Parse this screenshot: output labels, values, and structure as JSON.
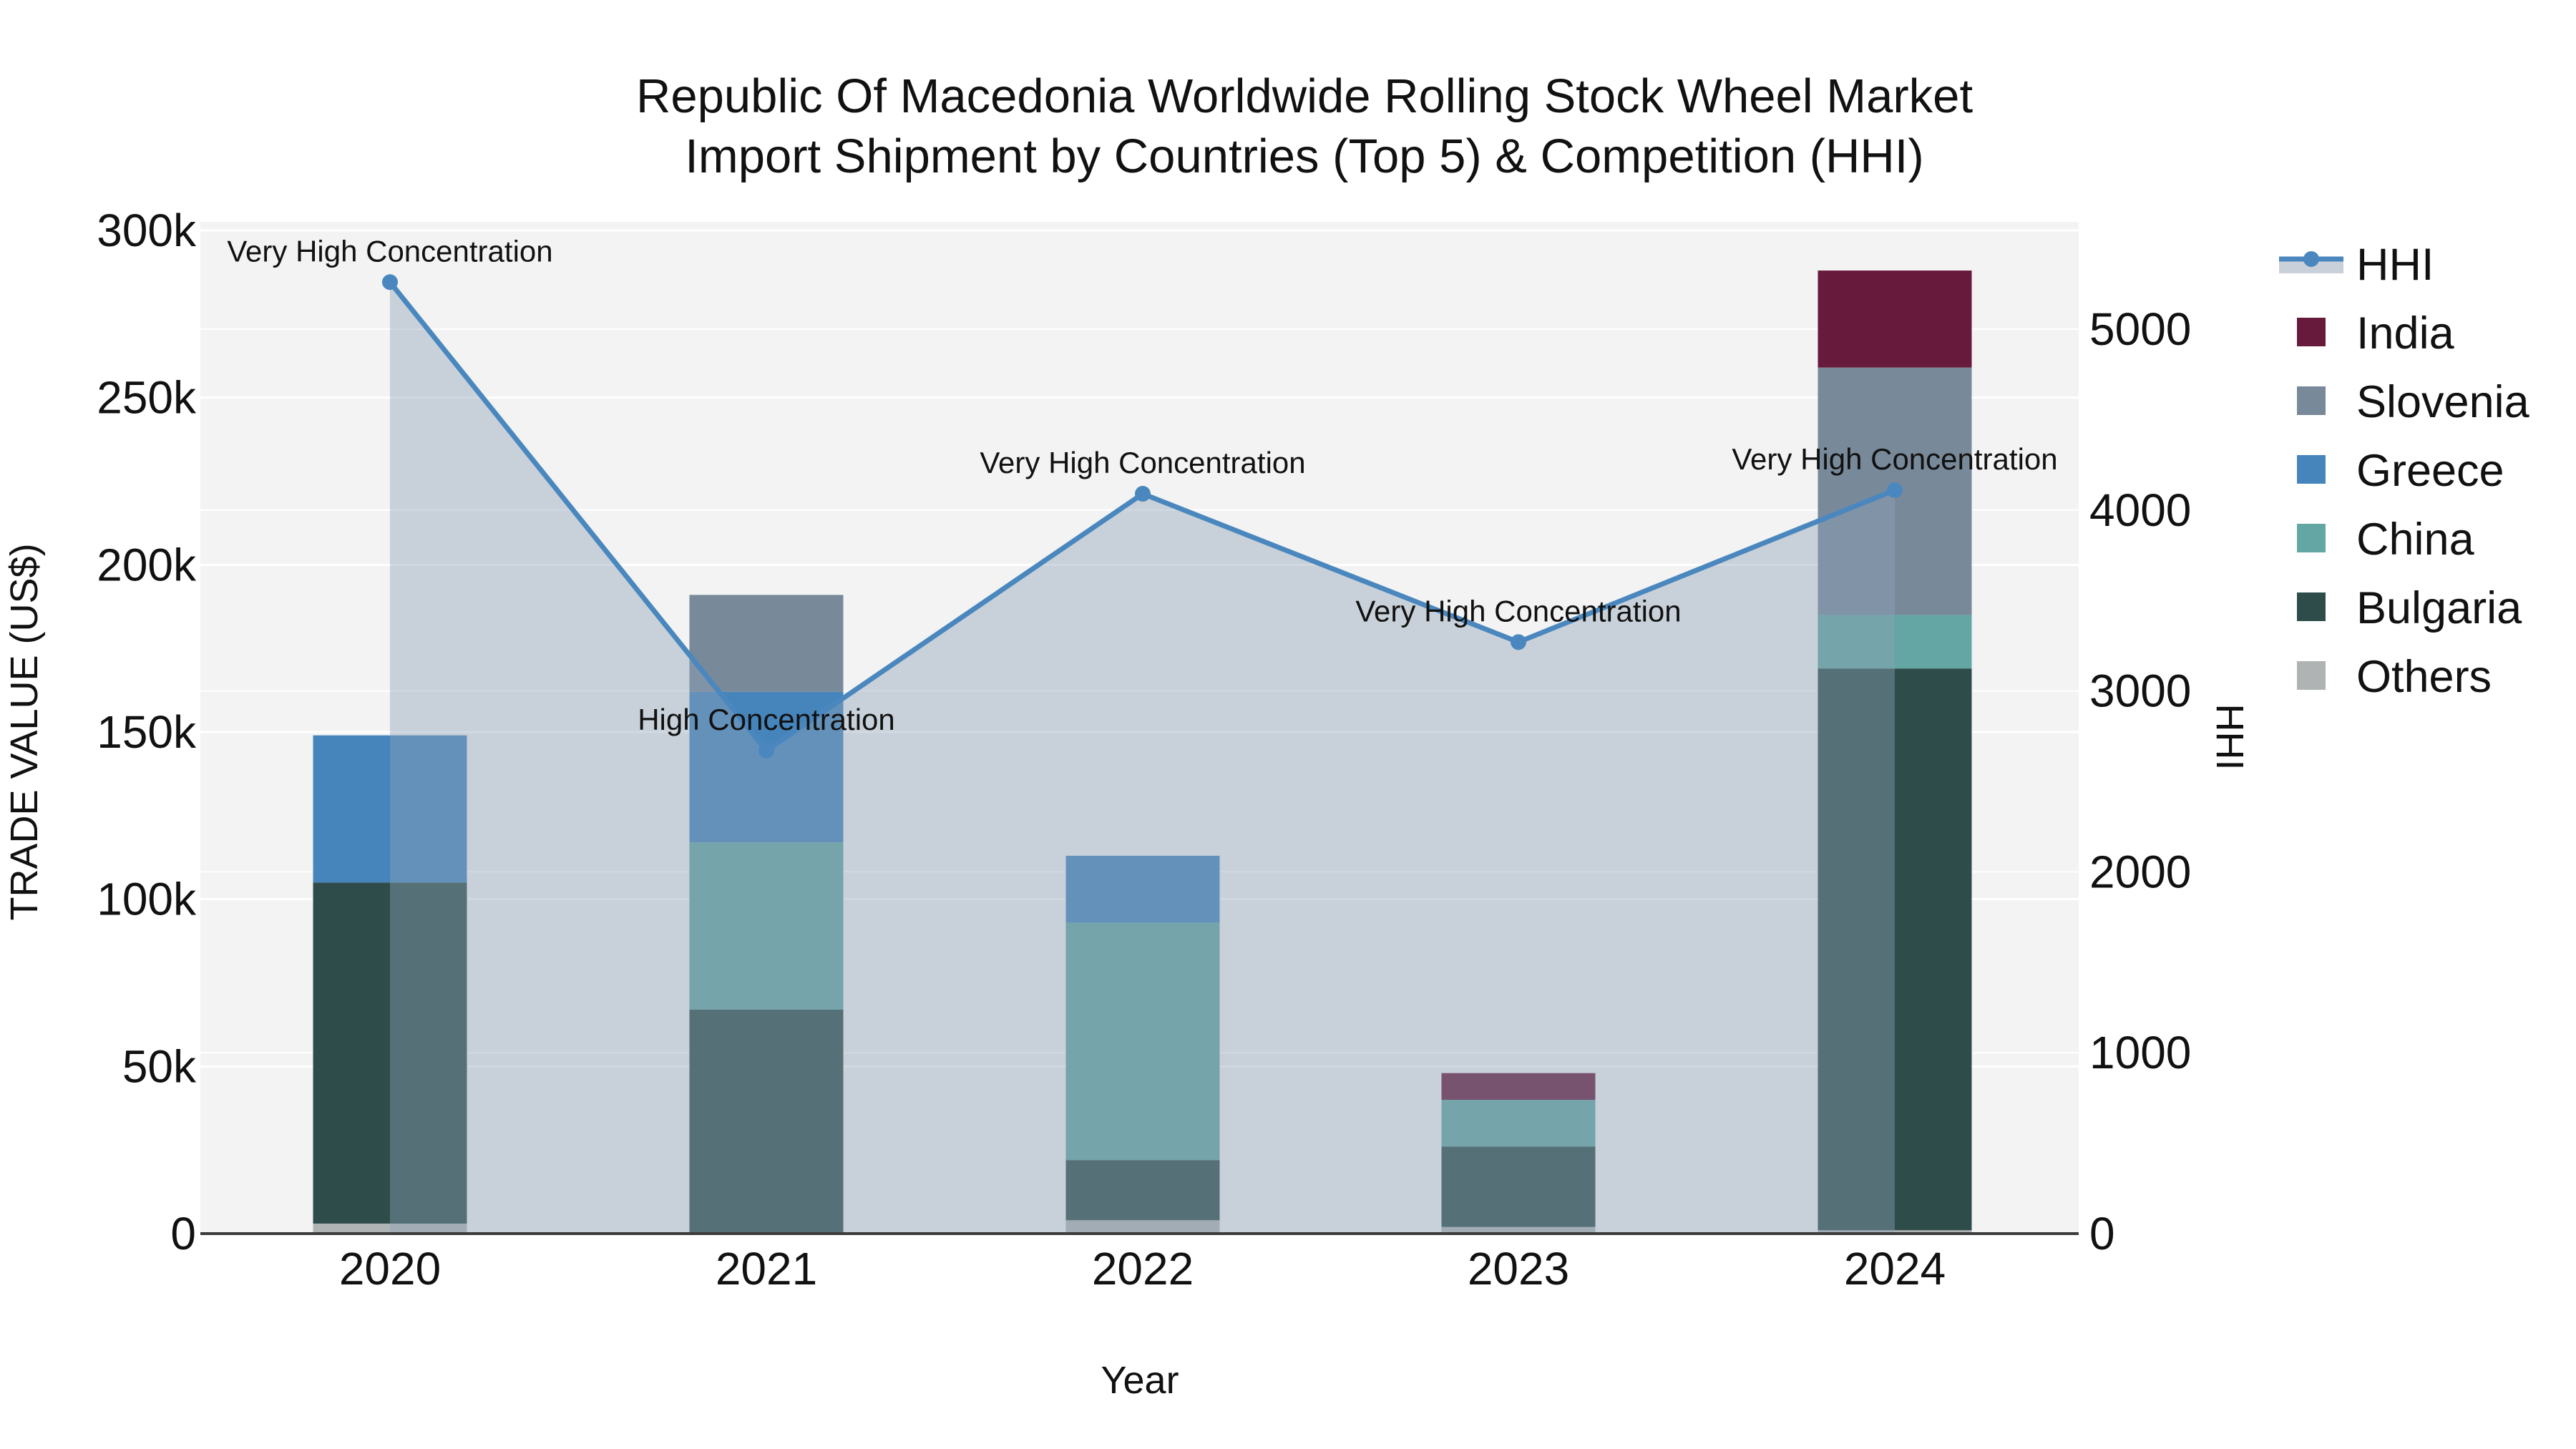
{
  "title": {
    "line1": "Republic Of Macedonia Worldwide Rolling Stock Wheel Market",
    "line2": "Import Shipment by Countries (Top 5) & Competition (HHI)"
  },
  "chart_data": {
    "type": "bar",
    "subtype": "stacked-bars-with-line",
    "categories": [
      "2020",
      "2021",
      "2022",
      "2023",
      "2024"
    ],
    "x": {
      "label": "Year"
    },
    "y1": {
      "label": "TRADE VALUE (US$)",
      "max": 300000,
      "ticks": [
        {
          "value": 0,
          "label": "0"
        },
        {
          "value": 50000,
          "label": "50k"
        },
        {
          "value": 100000,
          "label": "100k"
        },
        {
          "value": 150000,
          "label": "150k"
        },
        {
          "value": 200000,
          "label": "200k"
        },
        {
          "value": 250000,
          "label": "250k"
        },
        {
          "value": 300000,
          "label": "300k"
        }
      ]
    },
    "y2": {
      "label": "HHI",
      "max": 5000,
      "ticks": [
        {
          "value": 0,
          "label": "0"
        },
        {
          "value": 1000,
          "label": "1000"
        },
        {
          "value": 2000,
          "label": "2000"
        },
        {
          "value": 3000,
          "label": "3000"
        },
        {
          "value": 4000,
          "label": "4000"
        },
        {
          "value": 5000,
          "label": "5000"
        }
      ]
    },
    "bar_series": [
      {
        "name": "Others",
        "color": "#AFB3B3",
        "values": [
          3000,
          0,
          4000,
          2000,
          1000
        ]
      },
      {
        "name": "Bulgaria",
        "color": "#2E4C4A",
        "values": [
          102000,
          67000,
          18000,
          24000,
          168000
        ]
      },
      {
        "name": "China",
        "color": "#63A6A3",
        "values": [
          0,
          50000,
          71000,
          14000,
          16000
        ]
      },
      {
        "name": "Greece",
        "color": "#4685BB",
        "values": [
          44000,
          45000,
          20000,
          0,
          0
        ]
      },
      {
        "name": "Slovenia",
        "color": "#78899A",
        "values": [
          0,
          29000,
          0,
          0,
          74000
        ]
      },
      {
        "name": "India",
        "color": "#681A3C",
        "values": [
          0,
          0,
          0,
          8000,
          29000
        ]
      }
    ],
    "line_series": {
      "name": "HHI",
      "color": "#4A87BE",
      "area_fill": "#8FA3B8",
      "area_opacity": 0.42,
      "values": [
        5260,
        2670,
        4090,
        3270,
        4110
      ]
    },
    "annotations": [
      "Very High Concentration",
      "High Concentration",
      "Very High Concentration",
      "Very High Concentration",
      "Very High Concentration"
    ],
    "legend": [
      {
        "label": "HHI",
        "type": "line",
        "color": "#4A87BE",
        "band": "#C9D0D9"
      },
      {
        "label": "India",
        "type": "square",
        "color": "#681A3C"
      },
      {
        "label": "Slovenia",
        "type": "square",
        "color": "#78899A"
      },
      {
        "label": "Greece",
        "type": "square",
        "color": "#4685BB"
      },
      {
        "label": "China",
        "type": "square",
        "color": "#63A6A3"
      },
      {
        "label": "Bulgaria",
        "type": "square",
        "color": "#2E4C4A"
      },
      {
        "label": "Others",
        "type": "square",
        "color": "#AFB3B3"
      }
    ],
    "style": {
      "plot_bg": "#F2F3F2",
      "grid_color": "#FFFFFF",
      "axis_line_color": "#3C3C3C"
    }
  }
}
